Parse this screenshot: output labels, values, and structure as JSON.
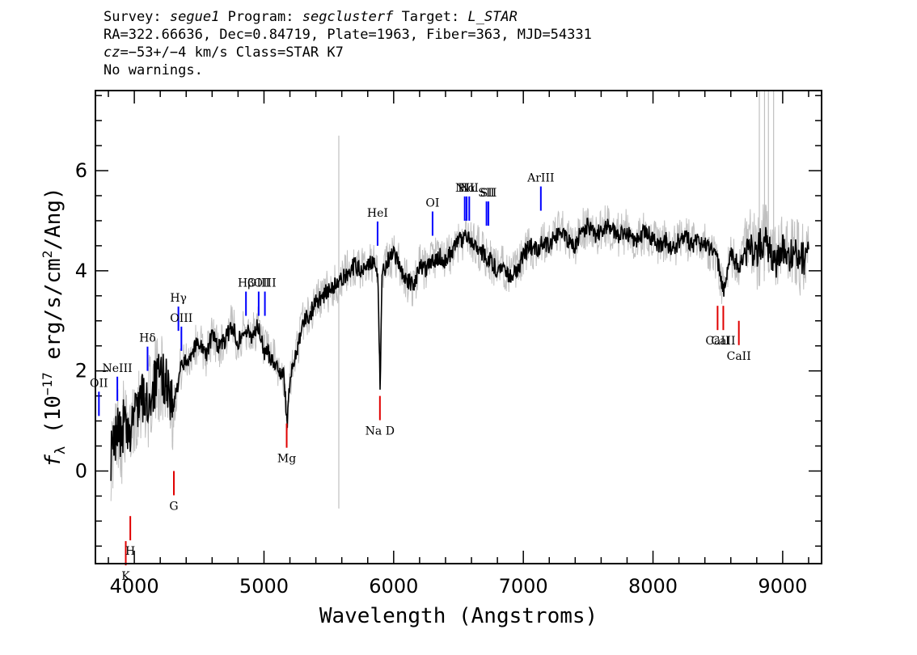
{
  "header": {
    "survey_label": "Survey:",
    "survey": "segue1",
    "program_label": "Program:",
    "program": "segclusterf",
    "target_label": "Target:",
    "target": "L_STAR",
    "line2": "RA=322.66636, Dec=0.84719, Plate=1963, Fiber=363, MJD=54331",
    "cz_label": "cz",
    "cz_value": "=−53+/−4",
    "cz_rest": " km/s Class=STAR K7",
    "line4": "No warnings."
  },
  "colors": {
    "flux": "#000000",
    "error": "#c0c0c0",
    "emission": "#0000ff",
    "absorption": "#e00000",
    "frame": "#000000"
  },
  "chart_data": {
    "type": "line",
    "xlabel": "Wavelength (Angstroms)",
    "ylabel_prefix": "f",
    "ylabel_subscript": "λ",
    "ylabel_rest": " (10",
    "ylabel_exp": "−17",
    "ylabel_units": " erg/s/cm",
    "ylabel_units_exp": "2",
    "ylabel_end": "/Ang)",
    "xlim": [
      3700,
      9300
    ],
    "ylim": [
      -1.85,
      7.6
    ],
    "x_ticks": [
      4000,
      5000,
      6000,
      7000,
      8000,
      9000
    ],
    "x_tick_labels": [
      "4000",
      "5000",
      "6000",
      "7000",
      "8000",
      "9000"
    ],
    "y_ticks": [
      0,
      2,
      4,
      6
    ],
    "y_tick_labels": [
      "0",
      "2",
      "4",
      "6"
    ],
    "grid": false,
    "series": [
      {
        "x": [
          3820,
          3850,
          3880,
          3900,
          3920,
          3940,
          3960,
          3980,
          4000,
          4050,
          4100,
          4150,
          4200,
          4250,
          4300,
          4350,
          4400,
          4450,
          4500,
          4550,
          4600,
          4650,
          4700,
          4750,
          4800,
          4850,
          4900,
          4950,
          5000,
          5050,
          5100,
          5150,
          5180,
          5200,
          5250,
          5300,
          5350,
          5400,
          5450,
          5500,
          5550,
          5600,
          5650,
          5700,
          5750,
          5800,
          5850,
          5880,
          5895,
          5910,
          5950,
          6000,
          6050,
          6100,
          6150,
          6200,
          6250,
          6300,
          6350,
          6400,
          6450,
          6500,
          6563,
          6600,
          6650,
          6700,
          6750,
          6800,
          6850,
          6900,
          6950,
          7000,
          7050,
          7100,
          7150,
          7200,
          7250,
          7300,
          7350,
          7400,
          7450,
          7500,
          7550,
          7600,
          7650,
          7700,
          7750,
          7800,
          7850,
          7900,
          7950,
          8000,
          8050,
          8100,
          8150,
          8200,
          8250,
          8300,
          8350,
          8400,
          8450,
          8498,
          8542,
          8600,
          8662,
          8700,
          8750,
          8800,
          8850,
          8900,
          8950,
          9000,
          9050,
          9100,
          9150,
          9200
        ],
        "y": [
          0.3,
          0.6,
          1.0,
          0.5,
          1.1,
          0.7,
          0.5,
          1.0,
          1.2,
          1.5,
          1.3,
          1.7,
          1.9,
          1.8,
          1.2,
          2.0,
          2.2,
          2.4,
          2.6,
          2.3,
          2.7,
          2.5,
          2.6,
          2.9,
          2.6,
          2.8,
          2.7,
          2.9,
          2.4,
          2.3,
          2.1,
          1.9,
          1.0,
          1.8,
          2.4,
          3.0,
          3.1,
          3.4,
          3.5,
          3.6,
          3.7,
          3.8,
          4.0,
          4.1,
          4.0,
          4.2,
          4.1,
          3.8,
          1.6,
          3.9,
          4.2,
          4.3,
          4.1,
          3.8,
          3.7,
          4.1,
          4.0,
          4.2,
          4.3,
          4.2,
          4.4,
          4.6,
          4.7,
          4.6,
          4.5,
          4.3,
          4.2,
          4.0,
          4.1,
          3.9,
          4.0,
          4.3,
          4.5,
          4.4,
          4.6,
          4.5,
          4.7,
          4.8,
          4.6,
          4.5,
          4.8,
          4.9,
          4.7,
          4.8,
          4.9,
          4.8,
          4.7,
          4.8,
          4.6,
          4.7,
          4.8,
          4.6,
          4.5,
          4.6,
          4.4,
          4.6,
          4.7,
          4.5,
          4.6,
          4.5,
          4.4,
          4.2,
          3.6,
          4.3,
          4.1,
          4.3,
          4.5,
          4.4,
          4.6,
          4.4,
          4.2,
          4.4,
          4.3,
          4.5,
          4.2,
          4.4
        ]
      }
    ],
    "emission_lines": [
      {
        "label": "OII",
        "wavelength": 3727,
        "y": 1.1
      },
      {
        "label": "NeIII",
        "wavelength": 3869,
        "y": 1.4
      },
      {
        "label": "Hδ",
        "wavelength": 4102,
        "y": 2.0
      },
      {
        "label": "Hγ",
        "wavelength": 4340,
        "y": 2.8
      },
      {
        "label": "OIII",
        "wavelength": 4363,
        "y": 2.4
      },
      {
        "label": "Hβ",
        "wavelength": 4861,
        "y": 3.1
      },
      {
        "label": "OIII",
        "wavelength": 4959,
        "y": 3.1
      },
      {
        "label": "OIII",
        "wavelength": 5007,
        "y": 3.1
      },
      {
        "label": "HeI",
        "wavelength": 5876,
        "y": 4.5
      },
      {
        "label": "OI",
        "wavelength": 6300,
        "y": 4.7
      },
      {
        "label": "NII",
        "wavelength": 6548,
        "y": 5.0
      },
      {
        "label": "Hα",
        "wavelength": 6563,
        "y": 5.0
      },
      {
        "label": "NII",
        "wavelength": 6583,
        "y": 5.0
      },
      {
        "label": "SII",
        "wavelength": 6716,
        "y": 4.9
      },
      {
        "label": "SII",
        "wavelength": 6731,
        "y": 4.9
      },
      {
        "label": "ArIII",
        "wavelength": 7135,
        "y": 5.2
      }
    ],
    "absorption_lines": [
      {
        "label": "K",
        "wavelength": 3934,
        "y": -1.4
      },
      {
        "label": "H",
        "wavelength": 3969,
        "y": -0.9
      },
      {
        "label": "G",
        "wavelength": 4305,
        "y": 0.0
      },
      {
        "label": "Mg",
        "wavelength": 5175,
        "y": 0.95
      },
      {
        "label": "Na D",
        "wavelength": 5894,
        "y": 1.5
      },
      {
        "label": "CaII",
        "wavelength": 8498,
        "y": 3.3
      },
      {
        "label": "CaII",
        "wavelength": 8542,
        "y": 3.3
      },
      {
        "label": "CaII",
        "wavelength": 8662,
        "y": 3.0
      }
    ]
  }
}
